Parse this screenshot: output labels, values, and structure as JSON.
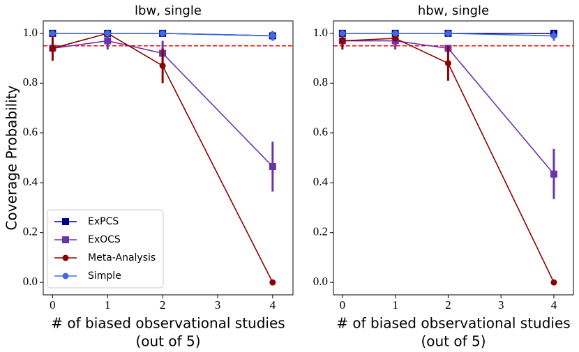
{
  "chart_data": [
    {
      "type": "line",
      "title": "lbw, single",
      "ylabel": "Coverage Probability",
      "xlabel": [
        "# of biased observational studies",
        "(out of 5)"
      ],
      "x": [
        0,
        1,
        2,
        4
      ],
      "xlim": [
        -0.17,
        4.37
      ],
      "xticks": [
        0,
        1,
        2,
        3,
        4
      ],
      "ylim": [
        -0.05,
        1.05
      ],
      "yticks": [
        {
          "value": 0,
          "label": "0.0"
        },
        {
          "value": 0.2,
          "label": "0.2"
        },
        {
          "value": 0.4,
          "label": "0.4"
        },
        {
          "value": 0.6,
          "label": "0.6"
        },
        {
          "value": 0.8,
          "label": "0.8"
        },
        {
          "value": 1,
          "label": "1.0"
        }
      ],
      "hline": 0.95,
      "hline_color": "#ff0000",
      "legend": "lower left",
      "series": [
        {
          "name": "ExPCS",
          "color": "#00008b",
          "marker": "square",
          "values": [
            1.0,
            1.0,
            1.0,
            0.99
          ],
          "errors": [
            null,
            null,
            null,
            0.02
          ]
        },
        {
          "name": "ExOCS",
          "color": "#6a35a8",
          "marker": "square",
          "values": [
            0.94,
            0.97,
            0.92,
            0.465
          ],
          "errors": [
            null,
            0.035,
            0.05,
            0.1
          ]
        },
        {
          "name": "Meta-Analysis",
          "color": "#8b0000",
          "marker": "circle",
          "values": [
            0.94,
            1.0,
            0.87,
            0.0
          ],
          "errors": [
            0.05,
            null,
            0.07,
            null
          ]
        },
        {
          "name": "Simple",
          "color": "#4169e1",
          "marker": "circle",
          "values": [
            1.0,
            1.0,
            1.0,
            0.99
          ],
          "errors": [
            null,
            null,
            null,
            0.02
          ]
        }
      ]
    },
    {
      "type": "line",
      "title": "hbw, single",
      "xlabel": [
        "# of biased observational studies",
        "(out of 5)"
      ],
      "x": [
        0,
        1,
        2,
        4
      ],
      "xlim": [
        -0.17,
        4.37
      ],
      "xticks": [
        0,
        1,
        2,
        3,
        4
      ],
      "ylim": [
        -0.05,
        1.05
      ],
      "yticks": [
        {
          "value": 0,
          "label": "0.0"
        },
        {
          "value": 0.2,
          "label": "0.2"
        },
        {
          "value": 0.4,
          "label": "0.4"
        },
        {
          "value": 0.6,
          "label": "0.6"
        },
        {
          "value": 0.8,
          "label": "0.8"
        },
        {
          "value": 1,
          "label": "1.0"
        }
      ],
      "hline": 0.95,
      "hline_color": "#ff0000",
      "series": [
        {
          "name": "ExPCS",
          "color": "#00008b",
          "marker": "square",
          "values": [
            1.0,
            1.0,
            1.0,
            1.0
          ],
          "errors": [
            null,
            null,
            null,
            null
          ]
        },
        {
          "name": "ExOCS",
          "color": "#6a35a8",
          "marker": "square",
          "values": [
            0.97,
            0.97,
            0.94,
            0.435
          ],
          "errors": [
            null,
            0.035,
            null,
            0.1
          ]
        },
        {
          "name": "Meta-Analysis",
          "color": "#8b0000",
          "marker": "circle",
          "values": [
            0.97,
            0.98,
            0.88,
            0.0
          ],
          "errors": [
            0.035,
            null,
            0.07,
            null
          ]
        },
        {
          "name": "Simple",
          "color": "#4169e1",
          "marker": "circle",
          "values": [
            1.0,
            1.0,
            1.0,
            0.99
          ],
          "errors": [
            null,
            null,
            null,
            0.02
          ]
        }
      ]
    }
  ]
}
